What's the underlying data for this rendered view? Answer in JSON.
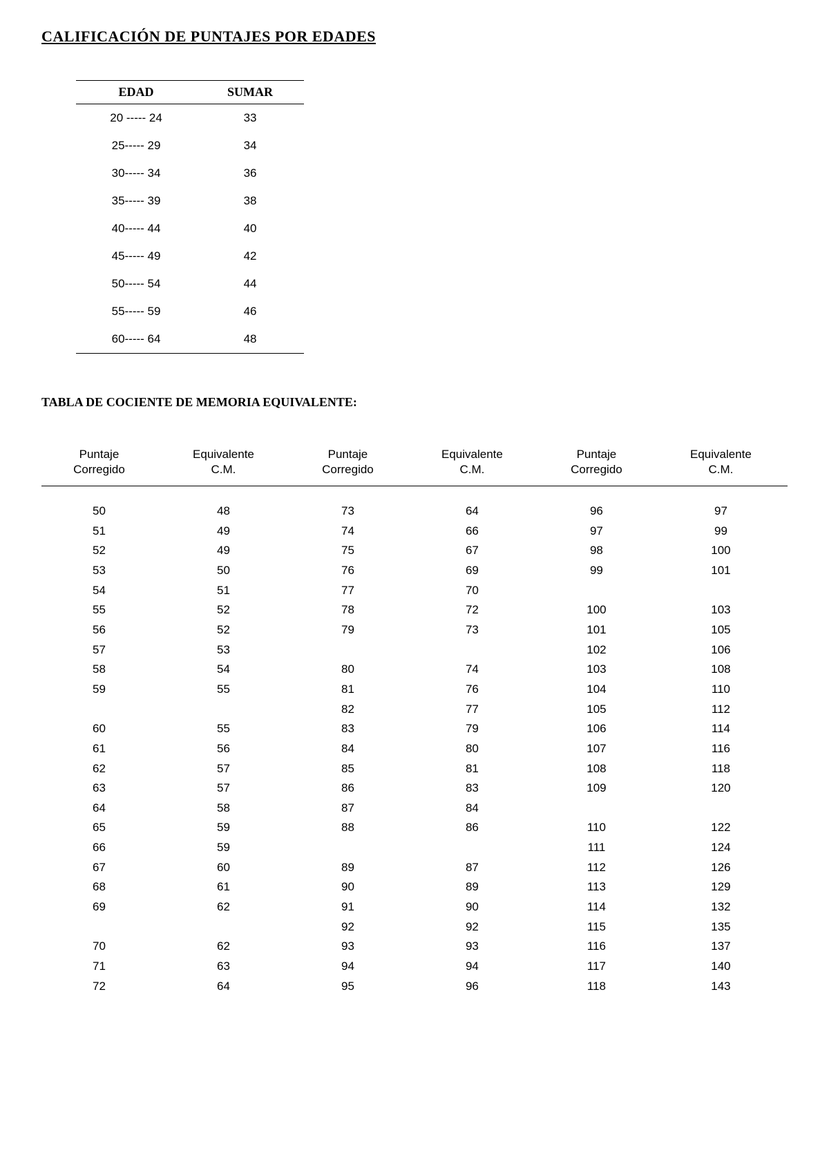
{
  "titles": {
    "main": "CALIFICACIÓN DE PUNTAJES POR EDADES",
    "sub": "TABLA DE COCIENTE DE MEMORIA EQUIVALENTE:"
  },
  "age_table": {
    "headers": {
      "edad": "EDAD",
      "sumar": "SUMAR"
    },
    "rows": [
      {
        "edad": "20 ----- 24",
        "sumar": "33"
      },
      {
        "edad": "25----- 29",
        "sumar": "34"
      },
      {
        "edad": "30----- 34",
        "sumar": "36"
      },
      {
        "edad": "35----- 39",
        "sumar": "38"
      },
      {
        "edad": "40----- 44",
        "sumar": "40"
      },
      {
        "edad": "45----- 49",
        "sumar": "42"
      },
      {
        "edad": "50----- 54",
        "sumar": "44"
      },
      {
        "edad": "55----- 59",
        "sumar": "46"
      },
      {
        "edad": "60----- 64",
        "sumar": "48"
      }
    ]
  },
  "cm_table": {
    "headers": {
      "pc1": "Puntaje",
      "pc2": "Corregido",
      "eq1": "Equivalente",
      "eq2": "C.M."
    },
    "rows": [
      [
        "50",
        "48",
        "73",
        "64",
        "96",
        "97"
      ],
      [
        "51",
        "49",
        "74",
        "66",
        "97",
        "99"
      ],
      [
        "52",
        "49",
        "75",
        "67",
        "98",
        "100"
      ],
      [
        "53",
        "50",
        "76",
        "69",
        "99",
        "101"
      ],
      [
        "54",
        "51",
        "77",
        "70",
        "",
        ""
      ],
      [
        "55",
        "52",
        "78",
        "72",
        "100",
        "103"
      ],
      [
        "56",
        "52",
        "79",
        "73",
        "101",
        "105"
      ],
      [
        "57",
        "53",
        "",
        "",
        "102",
        "106"
      ],
      [
        "58",
        "54",
        "80",
        "74",
        "103",
        "108"
      ],
      [
        "59",
        "55",
        "81",
        "76",
        "104",
        "110"
      ],
      [
        "",
        "",
        "82",
        "77",
        "105",
        "112"
      ],
      [
        "60",
        "55",
        "83",
        "79",
        "106",
        "114"
      ],
      [
        "61",
        "56",
        "84",
        "80",
        "107",
        "116"
      ],
      [
        "62",
        "57",
        "85",
        "81",
        "108",
        "118"
      ],
      [
        "63",
        "57",
        "86",
        "83",
        "109",
        "120"
      ],
      [
        "64",
        "58",
        "87",
        "84",
        "",
        ""
      ],
      [
        "65",
        "59",
        "88",
        "86",
        "110",
        "122"
      ],
      [
        "66",
        "59",
        "",
        "",
        "111",
        "124"
      ],
      [
        "67",
        "60",
        "89",
        "87",
        "112",
        "126"
      ],
      [
        "68",
        "61",
        "90",
        "89",
        "113",
        "129"
      ],
      [
        "69",
        "62",
        "91",
        "90",
        "114",
        "132"
      ],
      [
        "",
        "",
        "92",
        "92",
        "115",
        "135"
      ],
      [
        "70",
        "62",
        "93",
        "93",
        "116",
        "137"
      ],
      [
        "71",
        "63",
        "94",
        "94",
        "117",
        "140"
      ],
      [
        "72",
        "64",
        "95",
        "96",
        "118",
        "143"
      ]
    ]
  },
  "colors": {
    "background": "#ffffff",
    "text": "#000000",
    "border": "#000000"
  },
  "typography": {
    "title_fontsize": 22,
    "subtitle_fontsize": 18,
    "table_header_fontsize": 18,
    "table_body_fontsize": 17
  }
}
